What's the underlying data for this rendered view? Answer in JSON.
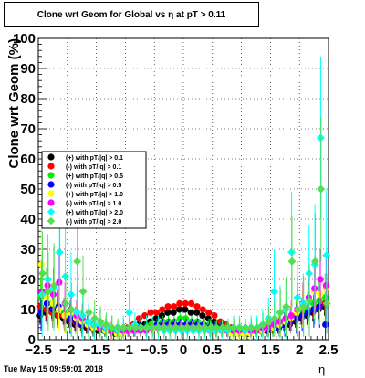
{
  "title": "Clone wrt Geom for Global vs   η at pT > 0.11",
  "footer": {
    "timestamp": "Tue May 15 09:59:01 2018",
    "x_symbol": "η"
  },
  "chart_data": {
    "type": "scatter",
    "title": "Clone wrt Geom for Global vs   η at pT > 0.11",
    "xlabel": "η",
    "ylabel": "Clone wrt Geom (%)",
    "xlim": [
      -2.5,
      2.5
    ],
    "ylim": [
      0,
      100
    ],
    "x_ticks": [
      "−2.5",
      "−2",
      "−1.5",
      "−1",
      "−0.5",
      "0",
      "0.5",
      "1",
      "1.5",
      "2",
      "2.5"
    ],
    "y_ticks": [
      "0",
      "10",
      "20",
      "30",
      "40",
      "50",
      "60",
      "70",
      "80",
      "90",
      "100"
    ],
    "grid": true,
    "legend_position": "left-middle",
    "x": [
      -2.45,
      -2.35,
      -2.25,
      -2.15,
      -2.05,
      -1.95,
      -1.85,
      -1.75,
      -1.65,
      -1.55,
      -1.45,
      -1.35,
      -1.25,
      -1.15,
      -1.05,
      -0.95,
      -0.85,
      -0.75,
      -0.65,
      -0.55,
      -0.45,
      -0.35,
      -0.25,
      -0.15,
      -0.05,
      0.05,
      0.15,
      0.25,
      0.35,
      0.45,
      0.55,
      0.65,
      0.75,
      0.85,
      0.95,
      1.05,
      1.15,
      1.25,
      1.35,
      1.45,
      1.55,
      1.65,
      1.75,
      1.85,
      1.95,
      2.05,
      2.15,
      2.25,
      2.35,
      2.45
    ],
    "series": [
      {
        "name": "(+) with pT/|q| > 0.1",
        "color": "#000000",
        "marker": "circle",
        "values": [
          8,
          9,
          10,
          8,
          7,
          6,
          5,
          5,
          4,
          4,
          3,
          3,
          3,
          2,
          3,
          3,
          4,
          5,
          5,
          6,
          7,
          8,
          9,
          9,
          10,
          10,
          9,
          9,
          8,
          7,
          6,
          5,
          5,
          4,
          3,
          3,
          2,
          3,
          3,
          3,
          4,
          4,
          5,
          5,
          6,
          7,
          8,
          9,
          10,
          11
        ],
        "errors": [
          3,
          3,
          3,
          3,
          2,
          2,
          2,
          2,
          2,
          2,
          1,
          1,
          1,
          1,
          1,
          1,
          1,
          1,
          1,
          1,
          1,
          1,
          1,
          1,
          1,
          1,
          1,
          1,
          1,
          1,
          1,
          1,
          1,
          1,
          1,
          1,
          1,
          1,
          1,
          1,
          2,
          2,
          2,
          2,
          2,
          2,
          3,
          3,
          3,
          3
        ]
      },
      {
        "name": "(-) with pT/|q| > 0.1",
        "color": "#ff0000",
        "marker": "circle",
        "values": [
          11,
          10,
          9,
          8,
          8,
          7,
          6,
          5,
          5,
          4,
          4,
          3,
          3,
          3,
          3,
          4,
          5,
          7,
          8,
          9,
          9,
          10,
          11,
          11,
          12,
          12,
          12,
          11,
          10,
          9,
          8,
          6,
          5,
          4,
          3,
          3,
          3,
          3,
          3,
          4,
          4,
          5,
          6,
          6,
          7,
          8,
          9,
          10,
          11,
          12
        ],
        "errors": [
          3,
          3,
          3,
          3,
          2,
          2,
          2,
          2,
          2,
          2,
          1,
          1,
          1,
          1,
          1,
          1,
          1,
          1,
          1,
          1,
          1,
          1,
          1,
          1,
          1,
          1,
          1,
          1,
          1,
          1,
          1,
          1,
          1,
          1,
          1,
          1,
          1,
          1,
          1,
          1,
          2,
          2,
          2,
          2,
          2,
          2,
          3,
          3,
          3,
          3
        ]
      },
      {
        "name": "(+) with pT/|q| > 0.5",
        "color": "#00ee00",
        "marker": "circle",
        "values": [
          14,
          16,
          12,
          10,
          9,
          8,
          7,
          6,
          5,
          4,
          4,
          3,
          3,
          3,
          2,
          3,
          3,
          4,
          4,
          5,
          5,
          6,
          6,
          6,
          7,
          7,
          6,
          6,
          5,
          5,
          4,
          4,
          4,
          3,
          3,
          2,
          3,
          3,
          3,
          4,
          4,
          5,
          6,
          7,
          8,
          9,
          10,
          12,
          13,
          14
        ],
        "errors": [
          7,
          8,
          6,
          6,
          5,
          5,
          4,
          4,
          3,
          3,
          2,
          2,
          2,
          2,
          2,
          2,
          2,
          2,
          2,
          2,
          2,
          2,
          2,
          2,
          2,
          2,
          2,
          2,
          2,
          2,
          2,
          2,
          2,
          2,
          2,
          2,
          2,
          2,
          2,
          2,
          3,
          3,
          4,
          4,
          5,
          5,
          6,
          6,
          7,
          8
        ]
      },
      {
        "name": "(-) with pT/|q| > 0.5",
        "color": "#0000ff",
        "marker": "circle",
        "values": [
          9,
          12,
          10,
          11,
          8,
          7,
          6,
          5,
          5,
          4,
          4,
          3,
          3,
          3,
          3,
          3,
          3,
          4,
          4,
          4,
          5,
          5,
          5,
          5,
          5,
          5,
          5,
          5,
          5,
          4,
          4,
          4,
          3,
          3,
          3,
          3,
          3,
          3,
          3,
          3,
          4,
          4,
          5,
          6,
          7,
          8,
          9,
          10,
          11,
          5
        ],
        "errors": [
          6,
          7,
          6,
          6,
          5,
          5,
          4,
          4,
          3,
          3,
          2,
          2,
          2,
          2,
          2,
          2,
          2,
          2,
          2,
          2,
          2,
          2,
          2,
          2,
          2,
          2,
          2,
          2,
          2,
          2,
          2,
          2,
          2,
          2,
          2,
          2,
          2,
          2,
          2,
          2,
          3,
          3,
          4,
          4,
          5,
          5,
          6,
          6,
          7,
          8
        ]
      },
      {
        "name": "(+) with pT/|q| > 1.0",
        "color": "#ffff00",
        "marker": "circle",
        "values": [
          25,
          14,
          12,
          10,
          8,
          9,
          7,
          6,
          5,
          4,
          4,
          3,
          3,
          2,
          2,
          3,
          3,
          3,
          3,
          4,
          4,
          4,
          4,
          4,
          4,
          4,
          4,
          4,
          4,
          3,
          3,
          3,
          3,
          2,
          2,
          2,
          2,
          3,
          3,
          4,
          4,
          5,
          6,
          7,
          9,
          11,
          13,
          16,
          15,
          17
        ],
        "errors": [
          12,
          9,
          8,
          7,
          6,
          6,
          5,
          5,
          4,
          4,
          3,
          3,
          3,
          2,
          2,
          2,
          2,
          2,
          2,
          2,
          2,
          2,
          2,
          2,
          2,
          2,
          2,
          2,
          2,
          2,
          2,
          2,
          2,
          2,
          2,
          2,
          2,
          2,
          2,
          3,
          3,
          4,
          4,
          5,
          6,
          7,
          8,
          9,
          10,
          11
        ]
      },
      {
        "name": "(-) with pT/|q| > 1.0",
        "color": "#ff00ff",
        "marker": "circle",
        "values": [
          16,
          18,
          15,
          19,
          12,
          10,
          8,
          7,
          6,
          5,
          4,
          4,
          3,
          3,
          3,
          3,
          3,
          3,
          3,
          4,
          4,
          4,
          4,
          4,
          4,
          4,
          4,
          4,
          4,
          3,
          3,
          3,
          3,
          3,
          3,
          3,
          3,
          3,
          4,
          4,
          5,
          6,
          7,
          8,
          10,
          12,
          14,
          17,
          20,
          18
        ],
        "errors": [
          10,
          11,
          9,
          10,
          7,
          6,
          5,
          5,
          4,
          4,
          3,
          3,
          3,
          2,
          2,
          2,
          2,
          2,
          2,
          2,
          2,
          2,
          2,
          2,
          2,
          2,
          2,
          2,
          2,
          2,
          2,
          2,
          2,
          2,
          2,
          2,
          2,
          2,
          2,
          3,
          3,
          4,
          4,
          5,
          6,
          7,
          8,
          9,
          10,
          11
        ]
      },
      {
        "name": "(+) with pT/|q| > 2.0",
        "color": "#00ffff",
        "marker": "diamond",
        "values": [
          15,
          20,
          17,
          29,
          21,
          15,
          9,
          8,
          6,
          5,
          5,
          4,
          4,
          3,
          4,
          9,
          5,
          4,
          4,
          4,
          4,
          3,
          3,
          3,
          3,
          3,
          3,
          3,
          3,
          3,
          3,
          3,
          3,
          4,
          4,
          3,
          4,
          4,
          5,
          7,
          16,
          9,
          10,
          29,
          14,
          12,
          22,
          25,
          67,
          28
        ],
        "errors": [
          14,
          15,
          14,
          20,
          16,
          14,
          9,
          8,
          6,
          5,
          5,
          4,
          4,
          3,
          4,
          7,
          4,
          4,
          4,
          4,
          4,
          3,
          3,
          3,
          3,
          3,
          3,
          3,
          3,
          3,
          3,
          3,
          3,
          4,
          4,
          3,
          4,
          4,
          5,
          7,
          14,
          9,
          10,
          20,
          12,
          10,
          16,
          20,
          27,
          22
        ]
      },
      {
        "name": "(-) with pT/|q| > 2.0",
        "color": "#55dd55",
        "marker": "diamond",
        "values": [
          22,
          16,
          18,
          38,
          12,
          10,
          26,
          16,
          9,
          7,
          6,
          5,
          4,
          4,
          4,
          4,
          4,
          4,
          4,
          4,
          4,
          4,
          4,
          4,
          4,
          4,
          4,
          4,
          4,
          4,
          4,
          4,
          4,
          4,
          4,
          4,
          4,
          4,
          5,
          6,
          7,
          9,
          11,
          26,
          10,
          11,
          13,
          26,
          50,
          12
        ],
        "errors": [
          14,
          13,
          14,
          18,
          10,
          9,
          16,
          12,
          8,
          6,
          5,
          4,
          4,
          3,
          3,
          3,
          3,
          3,
          3,
          3,
          3,
          3,
          3,
          3,
          3,
          3,
          3,
          3,
          3,
          3,
          3,
          3,
          3,
          3,
          3,
          3,
          3,
          3,
          4,
          5,
          6,
          8,
          10,
          15,
          9,
          10,
          12,
          16,
          24,
          10
        ]
      }
    ]
  }
}
